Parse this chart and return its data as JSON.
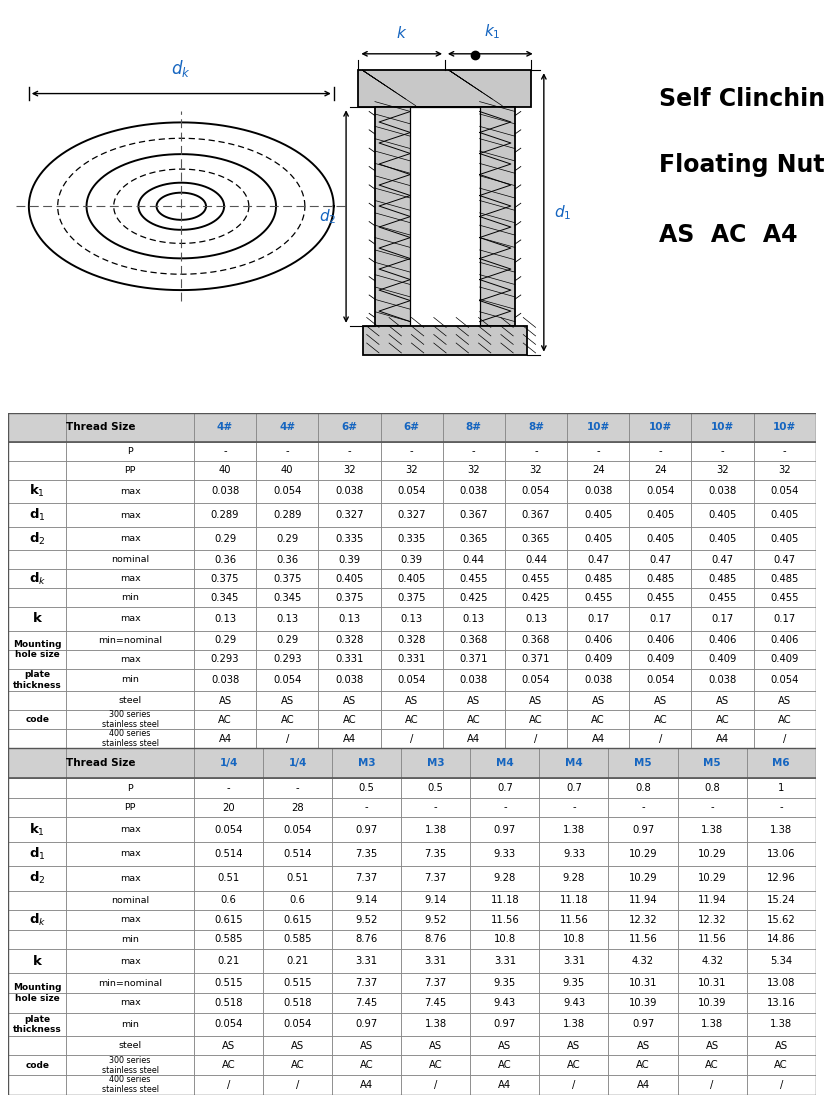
{
  "title_line1": "Self Clinching",
  "title_line2": "Floating Nut",
  "title_line3": "AS  AC  A4",
  "table1_header": [
    "4#",
    "4#",
    "6#",
    "6#",
    "8#",
    "8#",
    "10#",
    "10#",
    "10#",
    "10#"
  ],
  "table1_col_colors": [
    "#1565C0",
    "#1565C0",
    "#1565C0",
    "#1565C0",
    "#1565C0",
    "#1565C0",
    "#1565C0",
    "#1565C0",
    "#1565C0",
    "#1565C0"
  ],
  "table2_header": [
    "1/4",
    "1/4",
    "M3",
    "M3",
    "M4",
    "M4",
    "M5",
    "M5",
    "M6"
  ],
  "table2_col_colors": [
    "#1565C0",
    "#1565C0",
    "#1565C0",
    "#1565C0",
    "#1565C0",
    "#1565C0",
    "#1565C0",
    "#1565C0",
    "#1565C0"
  ],
  "row_labels": [
    [
      "",
      "P"
    ],
    [
      "",
      "PP"
    ],
    [
      "k1",
      "max"
    ],
    [
      "d1",
      "max"
    ],
    [
      "d2",
      "max"
    ],
    [
      "dk",
      "nominal"
    ],
    [
      "",
      "max"
    ],
    [
      "",
      "min"
    ],
    [
      "k",
      "max"
    ],
    [
      "Mounting\nhole size",
      "min=nominal"
    ],
    [
      "",
      "max"
    ],
    [
      "plate\nthickness",
      "min"
    ],
    [
      "code",
      "steel"
    ],
    [
      "",
      "300 series\nstainless steel"
    ],
    [
      "",
      "400 series\nstainless steel"
    ]
  ],
  "table1_data": [
    [
      "-",
      "-",
      "-",
      "-",
      "-",
      "-",
      "-",
      "-",
      "-",
      "-"
    ],
    [
      "40",
      "40",
      "32",
      "32",
      "32",
      "32",
      "24",
      "24",
      "32",
      "32"
    ],
    [
      "0.038",
      "0.054",
      "0.038",
      "0.054",
      "0.038",
      "0.054",
      "0.038",
      "0.054",
      "0.038",
      "0.054"
    ],
    [
      "0.289",
      "0.289",
      "0.327",
      "0.327",
      "0.367",
      "0.367",
      "0.405",
      "0.405",
      "0.405",
      "0.405"
    ],
    [
      "0.29",
      "0.29",
      "0.335",
      "0.335",
      "0.365",
      "0.365",
      "0.405",
      "0.405",
      "0.405",
      "0.405"
    ],
    [
      "0.36",
      "0.36",
      "0.39",
      "0.39",
      "0.44",
      "0.44",
      "0.47",
      "0.47",
      "0.47",
      "0.47"
    ],
    [
      "0.375",
      "0.375",
      "0.405",
      "0.405",
      "0.455",
      "0.455",
      "0.485",
      "0.485",
      "0.485",
      "0.485"
    ],
    [
      "0.345",
      "0.345",
      "0.375",
      "0.375",
      "0.425",
      "0.425",
      "0.455",
      "0.455",
      "0.455",
      "0.455"
    ],
    [
      "0.13",
      "0.13",
      "0.13",
      "0.13",
      "0.13",
      "0.13",
      "0.17",
      "0.17",
      "0.17",
      "0.17"
    ],
    [
      "0.29",
      "0.29",
      "0.328",
      "0.328",
      "0.368",
      "0.368",
      "0.406",
      "0.406",
      "0.406",
      "0.406"
    ],
    [
      "0.293",
      "0.293",
      "0.331",
      "0.331",
      "0.371",
      "0.371",
      "0.409",
      "0.409",
      "0.409",
      "0.409"
    ],
    [
      "0.038",
      "0.054",
      "0.038",
      "0.054",
      "0.038",
      "0.054",
      "0.038",
      "0.054",
      "0.038",
      "0.054"
    ],
    [
      "AS",
      "AS",
      "AS",
      "AS",
      "AS",
      "AS",
      "AS",
      "AS",
      "AS",
      "AS"
    ],
    [
      "AC",
      "AC",
      "AC",
      "AC",
      "AC",
      "AC",
      "AC",
      "AC",
      "AC",
      "AC"
    ],
    [
      "A4",
      "/",
      "A4",
      "/",
      "A4",
      "/",
      "A4",
      "/",
      "A4",
      "/"
    ]
  ],
  "table2_data": [
    [
      "-",
      "-",
      "0.5",
      "0.5",
      "0.7",
      "0.7",
      "0.8",
      "0.8",
      "1"
    ],
    [
      "20",
      "28",
      "-",
      "-",
      "-",
      "-",
      "-",
      "-",
      "-"
    ],
    [
      "0.054",
      "0.054",
      "0.97",
      "1.38",
      "0.97",
      "1.38",
      "0.97",
      "1.38",
      "1.38"
    ],
    [
      "0.514",
      "0.514",
      "7.35",
      "7.35",
      "9.33",
      "9.33",
      "10.29",
      "10.29",
      "13.06"
    ],
    [
      "0.51",
      "0.51",
      "7.37",
      "7.37",
      "9.28",
      "9.28",
      "10.29",
      "10.29",
      "12.96"
    ],
    [
      "0.6",
      "0.6",
      "9.14",
      "9.14",
      "11.18",
      "11.18",
      "11.94",
      "11.94",
      "15.24"
    ],
    [
      "0.615",
      "0.615",
      "9.52",
      "9.52",
      "11.56",
      "11.56",
      "12.32",
      "12.32",
      "15.62"
    ],
    [
      "0.585",
      "0.585",
      "8.76",
      "8.76",
      "10.8",
      "10.8",
      "11.56",
      "11.56",
      "14.86"
    ],
    [
      "0.21",
      "0.21",
      "3.31",
      "3.31",
      "3.31",
      "3.31",
      "4.32",
      "4.32",
      "5.34"
    ],
    [
      "0.515",
      "0.515",
      "7.37",
      "7.37",
      "9.35",
      "9.35",
      "10.31",
      "10.31",
      "13.08"
    ],
    [
      "0.518",
      "0.518",
      "7.45",
      "7.45",
      "9.43",
      "9.43",
      "10.39",
      "10.39",
      "13.16"
    ],
    [
      "0.054",
      "0.054",
      "0.97",
      "1.38",
      "0.97",
      "1.38",
      "0.97",
      "1.38",
      "1.38"
    ],
    [
      "AS",
      "AS",
      "AS",
      "AS",
      "AS",
      "AS",
      "AS",
      "AS",
      "AS"
    ],
    [
      "AC",
      "AC",
      "AC",
      "AC",
      "AC",
      "AC",
      "AC",
      "AC",
      "AC"
    ],
    [
      "/",
      "/",
      "A4",
      "/",
      "A4",
      "/",
      "A4",
      "/",
      "/"
    ]
  ],
  "bg_color": "#ffffff",
  "header_bg": "#d0d0d0",
  "border_color": "#888888",
  "blue": "#1565C0"
}
